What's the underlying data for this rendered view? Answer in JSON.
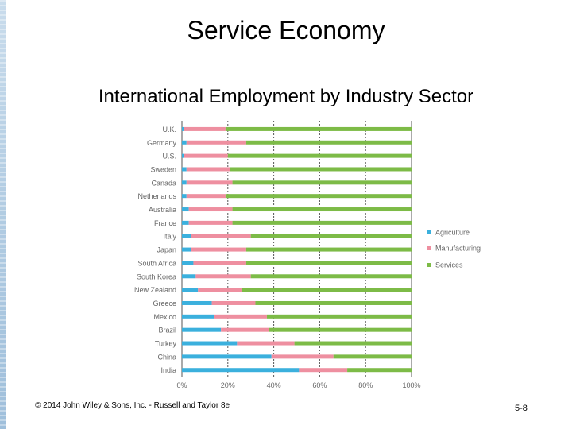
{
  "slide": {
    "title": "Service Economy",
    "subtitle": "International Employment by Industry Sector",
    "footer_left": "© 2014 John Wiley & Sons, Inc. - Russell and Taylor 8e",
    "footer_right": "5-8"
  },
  "colors": {
    "agriculture": "#3bb0dd",
    "manufacturing": "#ee8fa0",
    "services": "#7dbb47",
    "axis_text": "#666666",
    "grid": "#555555"
  },
  "chart_data": {
    "type": "bar",
    "orientation": "horizontal",
    "stacked": true,
    "categories": [
      "U.K.",
      "Germany",
      "U.S.",
      "Sweden",
      "Canada",
      "Netherlands",
      "Australia",
      "France",
      "Italy",
      "Japan",
      "South Africa",
      "South Korea",
      "New Zealand",
      "Greece",
      "Mexico",
      "Brazil",
      "Turkey",
      "China",
      "India"
    ],
    "series": [
      {
        "name": "Agriculture",
        "values": [
          1,
          2,
          1,
          2,
          2,
          2,
          3,
          3,
          4,
          4,
          5,
          6,
          7,
          13,
          14,
          17,
          24,
          39,
          51
        ]
      },
      {
        "name": "Manufacturing",
        "values": [
          18,
          26,
          19,
          19,
          20,
          17,
          19,
          19,
          26,
          24,
          23,
          24,
          19,
          19,
          23,
          21,
          25,
          27,
          21
        ]
      },
      {
        "name": "Services",
        "values": [
          81,
          72,
          80,
          79,
          78,
          81,
          78,
          78,
          70,
          72,
          72,
          70,
          74,
          68,
          63,
          62,
          51,
          34,
          28
        ]
      }
    ],
    "xlim": [
      0,
      100
    ],
    "xticks": [
      "0%",
      "20%",
      "40%",
      "60%",
      "80%",
      "100%"
    ],
    "grid": true,
    "legend_position": "right"
  }
}
